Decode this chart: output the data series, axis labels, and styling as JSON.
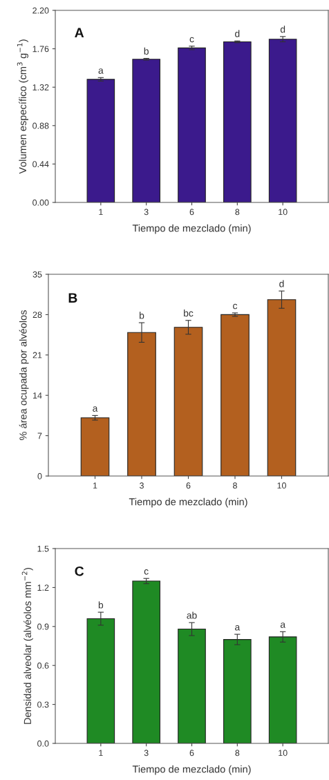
{
  "chart_data": [
    {
      "type": "bar",
      "title": "A",
      "xlabel": "Tiempo de mezclado (min)",
      "ylabel": "Volumen específico (cm$^{3}$ g$^{−1}$)",
      "categories": [
        "1",
        "3",
        "6",
        "8",
        "10"
      ],
      "values": [
        1.41,
        1.64,
        1.77,
        1.84,
        1.87
      ],
      "errors": [
        0.02,
        0.01,
        0.02,
        0.01,
        0.03
      ],
      "color": "#3b1a8c",
      "ylim": [
        0,
        2.2
      ],
      "yticks": [
        {
          "value": 0,
          "label": "0.00"
        },
        {
          "value": 0.44,
          "label": "0.44"
        },
        {
          "value": 0.88,
          "label": "0.88"
        },
        {
          "value": 1.32,
          "label": "1.32"
        },
        {
          "value": 1.76,
          "label": "1.76"
        },
        {
          "value": 2.2,
          "label": "2.20"
        }
      ],
      "grid": false,
      "legend": false,
      "annotations": [
        {
          "text": "a",
          "x": "1",
          "y": 1.43
        },
        {
          "text": "b",
          "x": "3",
          "y": 1.65
        },
        {
          "text": "c",
          "x": "6",
          "y": 1.79
        },
        {
          "text": "d",
          "x": "8",
          "y": 1.85
        },
        {
          "text": "d",
          "x": "10",
          "y": 1.9
        }
      ]
    },
    {
      "type": "bar",
      "title": "B",
      "xlabel": "Tiempo de mezclado (min)",
      "ylabel": "% área ocupada por alvéolos",
      "categories": [
        "1",
        "3",
        "6",
        "8",
        "10"
      ],
      "values": [
        10.1,
        24.9,
        25.8,
        28.0,
        30.6
      ],
      "errors": [
        0.4,
        1.7,
        1.2,
        0.3,
        1.5
      ],
      "color": "#b3601f",
      "ylim": [
        0,
        35
      ],
      "yticks": [
        0,
        7,
        14,
        21,
        28,
        35
      ],
      "grid": false,
      "legend": false,
      "annotations": [
        {
          "text": "a",
          "x": "1",
          "y": 10.5
        },
        {
          "text": "b",
          "x": "3",
          "y": 26.6
        },
        {
          "text": "bc",
          "x": "6",
          "y": 27.0
        },
        {
          "text": "c",
          "x": "8",
          "y": 28.3
        },
        {
          "text": "d",
          "x": "10",
          "y": 32.1
        }
      ]
    },
    {
      "type": "bar",
      "title": "C",
      "xlabel": "Tiempo de mezclado (min)",
      "ylabel": "Densidad alveolar (alvéolos mm$^{−2}$)",
      "categories": [
        "1",
        "3",
        "6",
        "8",
        "10"
      ],
      "values": [
        0.96,
        1.25,
        0.88,
        0.8,
        0.82
      ],
      "errors": [
        0.05,
        0.02,
        0.05,
        0.04,
        0.04
      ],
      "color": "#1f8a24",
      "ylim": [
        0,
        1.5
      ],
      "yticks": [
        {
          "value": 0,
          "label": "0.0"
        },
        {
          "value": 0.3,
          "label": "0.3"
        },
        {
          "value": 0.6,
          "label": "0.6"
        },
        {
          "value": 0.9,
          "label": "0.9"
        },
        {
          "value": 1.2,
          "label": "1.2"
        },
        {
          "value": 1.5,
          "label": "1.5"
        }
      ],
      "grid": false,
      "legend": false,
      "annotations": [
        {
          "text": "b",
          "x": "1",
          "y": 1.01
        },
        {
          "text": "c",
          "x": "3",
          "y": 1.27
        },
        {
          "text": "ab",
          "x": "6",
          "y": 0.93
        },
        {
          "text": "a",
          "x": "8",
          "y": 0.84
        },
        {
          "text": "a",
          "x": "10",
          "y": 0.86
        }
      ]
    }
  ]
}
